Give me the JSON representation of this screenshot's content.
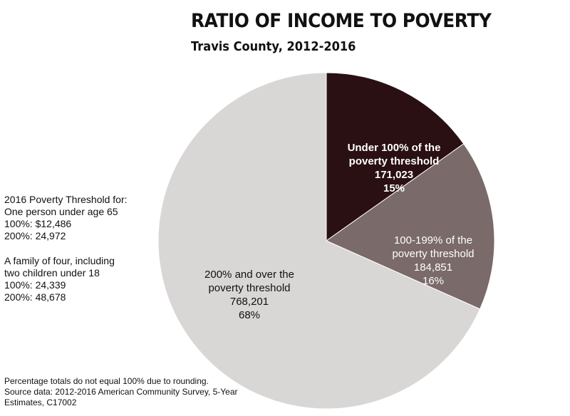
{
  "title": "RATIO OF INCOME TO POVERTY",
  "subtitle": "Travis County, 2012-2016",
  "chart_data": {
    "type": "pie",
    "title": "RATIO OF INCOME TO POVERTY",
    "subtitle": "Travis County, 2012-2016",
    "slices": [
      {
        "lines": [
          "Under 100% of the",
          "poverty threshold"
        ],
        "value": 171023,
        "value_label": "171,023",
        "percent": 15,
        "percent_label": "15%",
        "color": "#2a1013",
        "text_color": "#ffffff",
        "bold": true
      },
      {
        "lines": [
          "100-199% of the",
          "poverty threshold"
        ],
        "value": 184851,
        "value_label": "184,851",
        "percent": 16,
        "percent_label": "16%",
        "color": "#7a6a69",
        "text_color": "#ffffff",
        "bold": false
      },
      {
        "lines": [
          "200% and over the",
          "poverty threshold"
        ],
        "value": 768201,
        "value_label": "768,201",
        "percent": 68,
        "percent_label": "68%",
        "color": "#d9d6d6",
        "text_color": "#111111",
        "bold": false
      }
    ]
  },
  "threshold_note": {
    "single": [
      "2016 Poverty Threshold for:",
      "One person under age 65",
      "100%: $12,486",
      "200%: 24,972"
    ],
    "family": [
      "A family of four, including",
      "two children under 18",
      "100%: 24,339",
      "200%: 48,678"
    ]
  },
  "footnote": [
    "Percentage totals do not equal 100% due to rounding.",
    "Source data: 2012-2016 American Community Survey, 5-Year",
    "Estimates, C17002"
  ]
}
